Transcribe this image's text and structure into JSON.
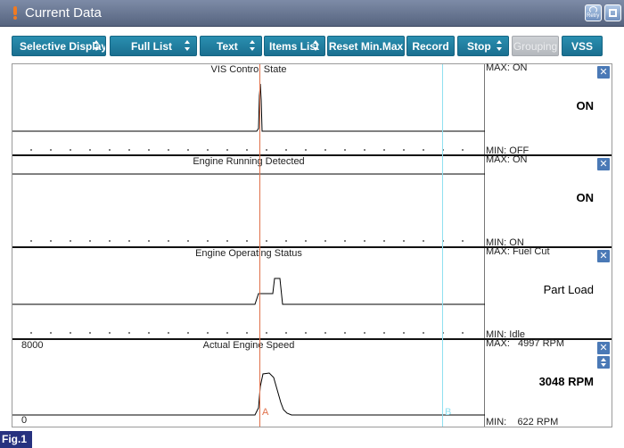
{
  "window": {
    "title": "Current Data",
    "retry_label": "Retry"
  },
  "toolbar": [
    {
      "label": "Selective Display",
      "dropdown": true,
      "enabled": true
    },
    {
      "label": "Full List",
      "dropdown": true,
      "enabled": true
    },
    {
      "label": "Text",
      "dropdown": true,
      "enabled": true
    },
    {
      "label": "Items List",
      "dropdown": true,
      "enabled": true
    },
    {
      "label": "Reset Min.Max",
      "dropdown": false,
      "enabled": true
    },
    {
      "label": "Record",
      "dropdown": false,
      "enabled": true
    },
    {
      "label": "Stop",
      "dropdown": true,
      "enabled": true
    },
    {
      "label": "Grouping",
      "dropdown": false,
      "enabled": false
    },
    {
      "label": "VSS",
      "dropdown": false,
      "enabled": true
    }
  ],
  "panels": [
    {
      "title": "VIS Control State",
      "max": "MAX: ON",
      "min": "MIN: OFF",
      "value": "ON",
      "y_max_label": "",
      "y_min_label": ""
    },
    {
      "title": "Engine Running Detected",
      "max": "MAX: ON",
      "min": "MIN: ON",
      "value": "ON",
      "y_max_label": "",
      "y_min_label": ""
    },
    {
      "title": "Engine Operating Status",
      "max": "MAX: Fuel Cut",
      "min": "MIN: Idle",
      "value": "Part Load",
      "y_max_label": "",
      "y_min_label": ""
    },
    {
      "title": "Actual Engine Speed",
      "max": "MAX:   4997 RPM",
      "min": "MIN:    622 RPM",
      "value": "3048 RPM",
      "y_max_label": "8000",
      "y_min_label": "0"
    }
  ],
  "cursors": {
    "a": "A",
    "b": "B"
  },
  "figure_label": "Fig.1",
  "colors": {
    "cursor_a": "#e0704a",
    "cursor_b": "#8fe0f0",
    "button": "#1f7fa1",
    "title_bar": "#6a7894"
  }
}
